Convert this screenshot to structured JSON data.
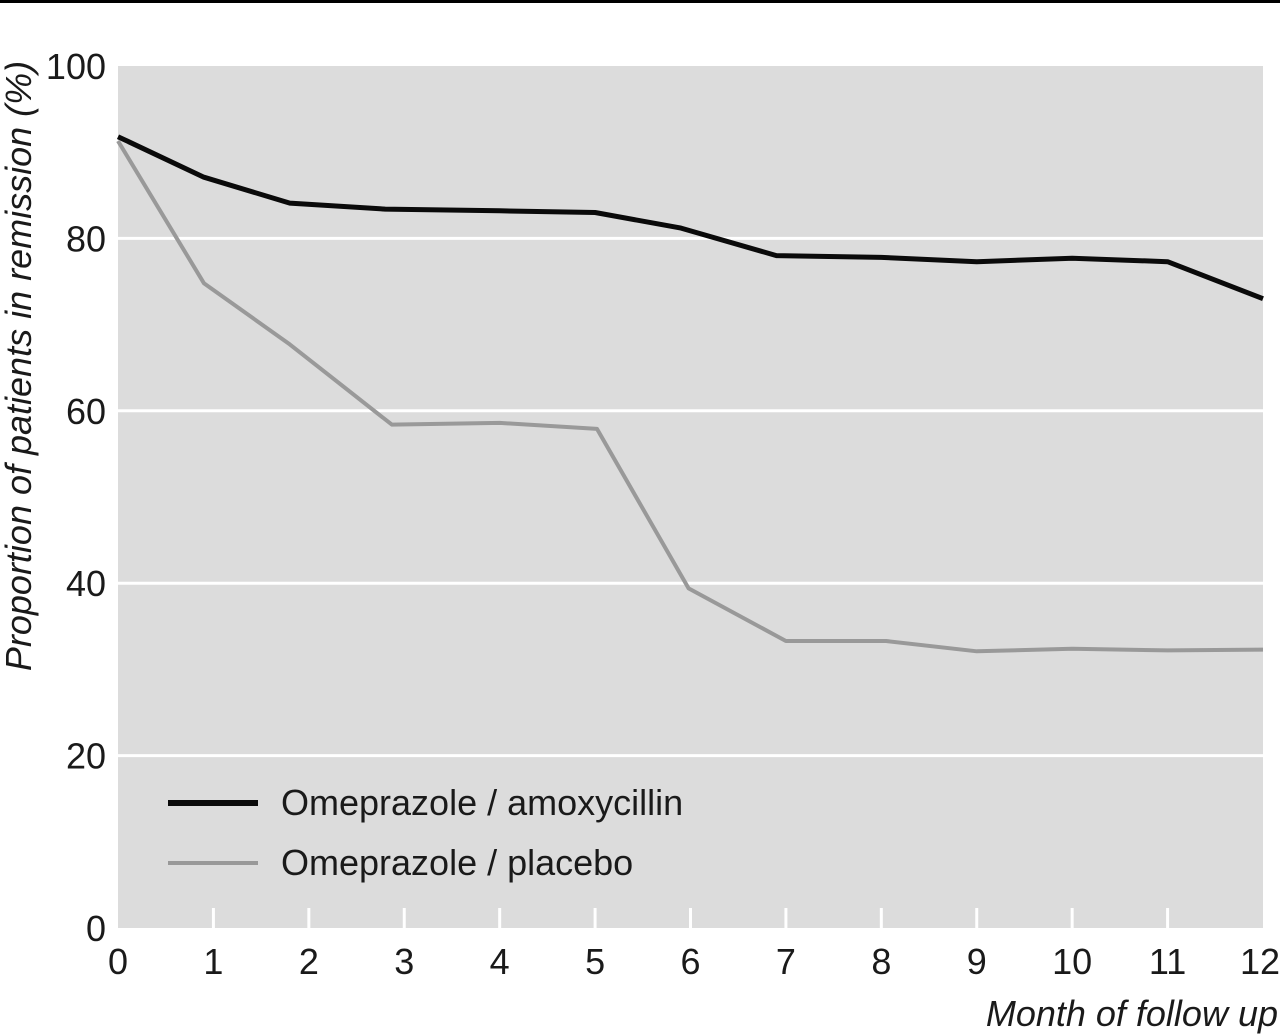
{
  "chart_data": {
    "type": "line",
    "xlabel": "Month of follow up",
    "ylabel": "Proportion of patients in remission (%)",
    "xlim": [
      0,
      12
    ],
    "ylim": [
      0,
      100
    ],
    "x_ticks": [
      0,
      1,
      2,
      3,
      4,
      5,
      6,
      7,
      8,
      9,
      10,
      11,
      12
    ],
    "y_ticks": [
      0,
      20,
      40,
      60,
      80,
      100
    ],
    "grid": "horizontal",
    "legend_position": "bottom-left",
    "background_color": "#dcdcdc",
    "series": [
      {
        "name": "Omeprazole / amoxycillin",
        "color": "#0a0a0a",
        "x": [
          0,
          0.9,
          1.8,
          2.8,
          4,
          5,
          5.9,
          6.9,
          8,
          9,
          10,
          11,
          12
        ],
        "values": [
          91.8,
          87.1,
          84.1,
          83.4,
          83.2,
          83.0,
          81.2,
          78.0,
          77.8,
          77.3,
          77.7,
          77.3,
          73.0
        ]
      },
      {
        "name": "Omeprazole / placebo",
        "color": "#999999",
        "x": [
          0,
          0.9,
          1.8,
          2.87,
          4,
          5.02,
          5.98,
          7,
          8.05,
          9,
          10,
          11,
          12
        ],
        "values": [
          91.3,
          74.8,
          67.7,
          58.4,
          58.6,
          57.9,
          39.4,
          33.3,
          33.3,
          32.1,
          32.4,
          32.2,
          32.3
        ]
      }
    ]
  }
}
